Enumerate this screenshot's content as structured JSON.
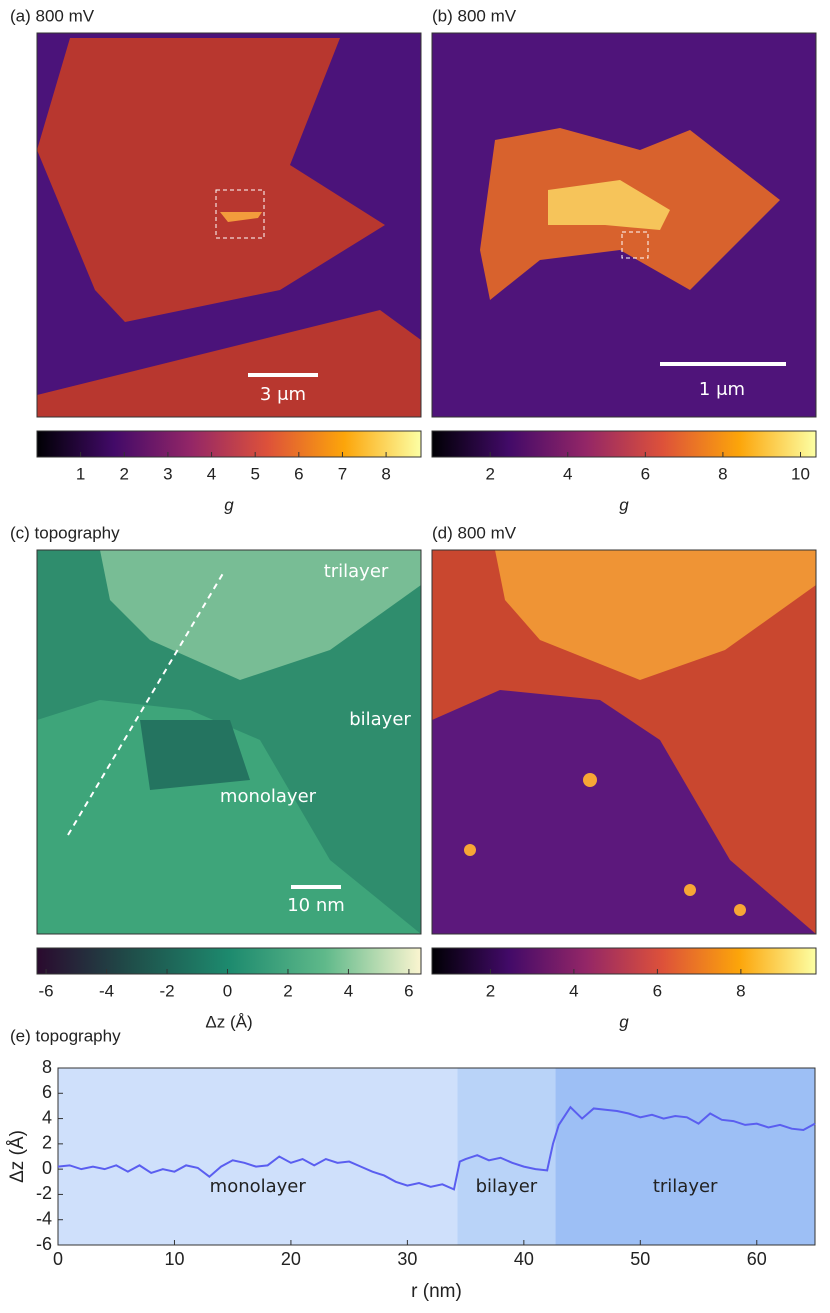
{
  "chart_data": [
    {
      "type": "heatmap",
      "title": "(a) 800 mV",
      "annotations": [
        "3 μm"
      ],
      "colorbar": {
        "label": "g",
        "lim": [
          0,
          8.8
        ],
        "ticks": [
          1,
          2,
          3,
          4,
          5,
          6,
          7,
          8
        ],
        "colors": [
          "#000004",
          "#420a68",
          "#932667",
          "#dd513a",
          "#fca50a",
          "#fcffa4"
        ]
      }
    },
    {
      "type": "heatmap",
      "title": "(b) 800 mV",
      "annotations": [
        "1 μm"
      ],
      "colorbar": {
        "label": "g",
        "lim": [
          0.5,
          10.4
        ],
        "ticks": [
          2,
          4,
          6,
          8,
          10
        ],
        "colors": [
          "#000004",
          "#420a68",
          "#932667",
          "#dd513a",
          "#fca50a",
          "#fcffa4"
        ]
      }
    },
    {
      "type": "heatmap",
      "title": "(c) topography",
      "annotations": [
        "trilayer",
        "bilayer",
        "monolayer",
        "10 nm"
      ],
      "colorbar": {
        "label": "Δz (Å)",
        "lim": [
          -6.3,
          6.4
        ],
        "ticks": [
          -6,
          -4,
          -2,
          0,
          2,
          4,
          6
        ],
        "colors": [
          "#2a0a2e",
          "#1f4f4a",
          "#1d8a6e",
          "#5fb98a",
          "#fbf5d0"
        ]
      }
    },
    {
      "type": "heatmap",
      "title": "(d) 800 mV",
      "annotations": [],
      "colorbar": {
        "label": "g",
        "lim": [
          0.6,
          9.8
        ],
        "ticks": [
          2,
          4,
          6,
          8
        ],
        "colors": [
          "#000004",
          "#420a68",
          "#932667",
          "#dd513a",
          "#fca50a",
          "#fcffa4"
        ]
      }
    },
    {
      "type": "line",
      "title": "(e) topography",
      "xlabel": "r (nm)",
      "ylabel": "Δz (Å)",
      "xlim": [
        0,
        65
      ],
      "ylim": [
        -6,
        8
      ],
      "xticks": [
        0,
        10,
        20,
        30,
        40,
        50,
        60
      ],
      "yticks": [
        -6,
        -4,
        -2,
        0,
        2,
        4,
        6,
        8
      ],
      "color": "#5a5ef0",
      "regions": [
        {
          "label": "monolayer",
          "start": 0,
          "end": 34.3,
          "color": "#cfe0fb"
        },
        {
          "label": "bilayer",
          "start": 34.3,
          "end": 42.7,
          "color": "#b9d3f8"
        },
        {
          "label": "trilayer",
          "start": 42.7,
          "end": 65,
          "color": "#9dbff5"
        }
      ],
      "x": [
        0,
        1,
        2,
        3,
        4,
        5,
        6,
        7,
        8,
        9,
        10,
        11,
        12,
        13,
        14,
        15,
        16,
        17,
        18,
        19,
        20,
        21,
        22,
        23,
        24,
        25,
        26,
        27,
        28,
        29,
        30,
        31,
        32,
        33,
        34,
        34.5,
        35,
        36,
        37,
        38,
        39,
        40,
        41,
        42,
        42.5,
        43,
        44,
        45,
        46,
        47,
        48,
        49,
        50,
        51,
        52,
        53,
        54,
        55,
        56,
        57,
        58,
        59,
        60,
        61,
        62,
        63,
        64,
        65
      ],
      "values": [
        0.2,
        0.3,
        0,
        0.2,
        0,
        0.3,
        -0.2,
        0.3,
        -0.3,
        0,
        -0.2,
        0.3,
        0.1,
        -0.6,
        0.2,
        0.7,
        0.5,
        0.2,
        0.3,
        1.0,
        0.5,
        0.8,
        0.3,
        0.8,
        0.5,
        0.6,
        0.2,
        -0.2,
        -0.5,
        -1.0,
        -1.3,
        -1.1,
        -1.4,
        -1.2,
        -1.6,
        0.6,
        0.8,
        1.1,
        0.7,
        0.9,
        0.5,
        0.2,
        0,
        -0.1,
        2,
        3.5,
        4.9,
        4,
        4.8,
        4.7,
        4.6,
        4.4,
        4.1,
        4.3,
        4,
        4.2,
        4.1,
        3.6,
        4.4,
        3.9,
        3.8,
        3.5,
        3.6,
        3.3,
        3.5,
        3.2,
        3.1,
        3.6
      ]
    }
  ]
}
